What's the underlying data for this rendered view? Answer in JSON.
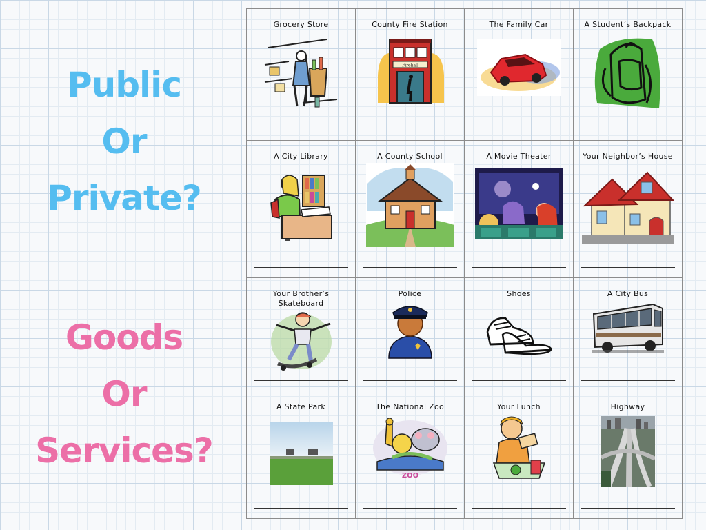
{
  "left_panel": {
    "group1": [
      "Public",
      "Or",
      "Private?"
    ],
    "group2": [
      "Goods",
      "Or",
      "Services?"
    ]
  },
  "grid": {
    "rows": [
      [
        "Grocery Store",
        "County Fire Station",
        "The Family Car",
        "A Student’s Backpack"
      ],
      [
        "A City Library",
        "A County School",
        "A Movie Theater",
        "Your Neighbor’s House"
      ],
      [
        "Your Brother’s Skateboard",
        "Police",
        "Shoes",
        "A City Bus"
      ],
      [
        "A State Park",
        "The National Zoo",
        "Your Lunch",
        "Highway"
      ]
    ]
  },
  "firestation_sign": "Firehall",
  "zoo_sign": "ZOO",
  "colors": {
    "public_private": "#55bdf0",
    "goods_services": "#ec6fa7"
  }
}
